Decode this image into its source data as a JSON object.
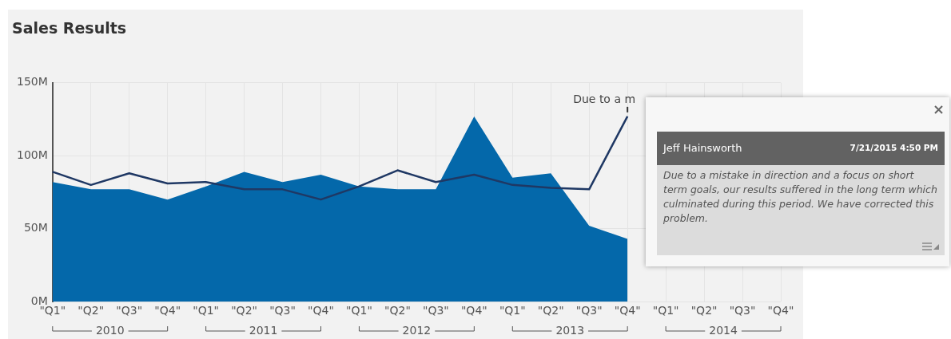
{
  "chart_data": {
    "type": "area",
    "title": "Sales Results",
    "categories": [
      "\"Q1\"",
      "\"Q2\"",
      "\"Q3\"",
      "\"Q4\"",
      "\"Q1\"",
      "\"Q2\"",
      "\"Q3\"",
      "\"Q4\"",
      "\"Q1\"",
      "\"Q2\"",
      "\"Q3\"",
      "\"Q4\"",
      "\"Q1\"",
      "\"Q2\"",
      "\"Q3\"",
      "\"Q4\"",
      "\"Q1\"",
      "\"Q2\"",
      "\"Q3\"",
      "\"Q4\""
    ],
    "series": [
      {
        "color": "#0468aa",
        "values": [
          82,
          77,
          77,
          70,
          79,
          89,
          82,
          87,
          79,
          77,
          77,
          127,
          85,
          88,
          52,
          43,
          null,
          null,
          null,
          null
        ]
      },
      {
        "type": "line",
        "color": "#1f3864",
        "values": [
          89,
          80,
          88,
          81,
          82,
          77,
          77,
          70,
          79,
          90,
          82,
          87,
          80,
          78,
          77,
          127,
          null,
          null,
          null,
          null
        ]
      }
    ],
    "ylim": [
      0,
      150
    ],
    "yticks": [
      {
        "value": 0,
        "label": "0M"
      },
      {
        "value": 50,
        "label": "50M"
      },
      {
        "value": 100,
        "label": "100M"
      },
      {
        "value": 150,
        "label": "150M"
      }
    ],
    "grid": true,
    "legend": false,
    "marker": "none",
    "annotations": [
      "2010",
      "2011",
      "2012",
      "2013",
      "2014",
      "Due to a m",
      "Jeff Hainsworth",
      "7/21/2015 4:50 PM",
      "Due to a mistake in direction and a focus on short term goals, our results suffered in the long term which culminated during this period. We have corrected this problem."
    ]
  }
}
